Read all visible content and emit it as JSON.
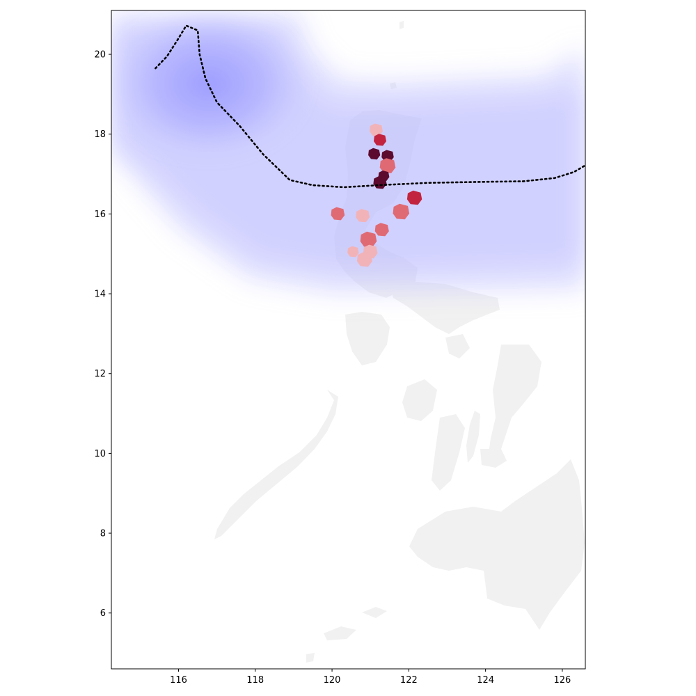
{
  "chart_data": {
    "type": "map",
    "title": "",
    "xlabel": "",
    "ylabel": "",
    "xlim": [
      114.25,
      126.6
    ],
    "ylim": [
      4.6,
      21.1
    ],
    "x_ticks": [
      116,
      118,
      120,
      122,
      124,
      126
    ],
    "y_ticks": [
      6,
      8,
      10,
      12,
      14,
      16,
      18,
      20
    ],
    "grid": false,
    "legend": "none",
    "colors": {
      "land": "#f1f1f1",
      "wind_field": "#a3a3ff",
      "track": "#000000",
      "impact_low": "#f2b3b8",
      "impact_mid": "#e06a73",
      "impact_high": "#c2233f",
      "impact_max": "#5c0a2e"
    },
    "storm_track": [
      {
        "lon": 115.4,
        "lat": 19.65
      },
      {
        "lon": 115.7,
        "lat": 19.95
      },
      {
        "lon": 116.0,
        "lat": 20.4
      },
      {
        "lon": 116.2,
        "lat": 20.72
      },
      {
        "lon": 116.5,
        "lat": 20.6
      },
      {
        "lon": 116.55,
        "lat": 20.0
      },
      {
        "lon": 116.7,
        "lat": 19.4
      },
      {
        "lon": 117.0,
        "lat": 18.8
      },
      {
        "lon": 117.6,
        "lat": 18.2
      },
      {
        "lon": 118.2,
        "lat": 17.5
      },
      {
        "lon": 118.9,
        "lat": 16.85
      },
      {
        "lon": 119.5,
        "lat": 16.72
      },
      {
        "lon": 120.3,
        "lat": 16.67
      },
      {
        "lon": 121.2,
        "lat": 16.72
      },
      {
        "lon": 122.5,
        "lat": 16.78
      },
      {
        "lon": 123.7,
        "lat": 16.8
      },
      {
        "lon": 125.0,
        "lat": 16.82
      },
      {
        "lon": 125.8,
        "lat": 16.9
      },
      {
        "lon": 126.3,
        "lat": 17.05
      },
      {
        "lon": 126.6,
        "lat": 17.22
      }
    ],
    "wind_field": {
      "core": {
        "lon": 117.6,
        "lat": 18.9
      },
      "band_half_width_deg": 2.6
    },
    "impact_areas": [
      {
        "lon": 121.15,
        "lat": 18.1,
        "level": "low"
      },
      {
        "lon": 121.25,
        "lat": 17.85,
        "level": "high"
      },
      {
        "lon": 121.1,
        "lat": 17.5,
        "level": "max"
      },
      {
        "lon": 121.45,
        "lat": 17.45,
        "level": "max"
      },
      {
        "lon": 121.45,
        "lat": 17.2,
        "level": "mid"
      },
      {
        "lon": 121.35,
        "lat": 16.95,
        "level": "max"
      },
      {
        "lon": 121.25,
        "lat": 16.78,
        "level": "max"
      },
      {
        "lon": 122.15,
        "lat": 16.4,
        "level": "high"
      },
      {
        "lon": 121.8,
        "lat": 16.05,
        "level": "mid"
      },
      {
        "lon": 120.8,
        "lat": 15.95,
        "level": "low"
      },
      {
        "lon": 121.3,
        "lat": 15.6,
        "level": "mid"
      },
      {
        "lon": 120.95,
        "lat": 15.35,
        "level": "mid"
      },
      {
        "lon": 121.0,
        "lat": 15.05,
        "level": "low"
      },
      {
        "lon": 120.85,
        "lat": 14.85,
        "level": "low"
      },
      {
        "lon": 120.15,
        "lat": 16.0,
        "level": "mid"
      },
      {
        "lon": 120.55,
        "lat": 15.05,
        "level": "low"
      }
    ]
  }
}
